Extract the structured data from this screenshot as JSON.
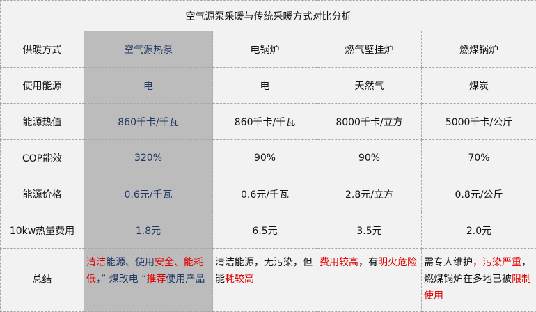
{
  "title": "空气源泵采暖与传统采暖方式对比分析",
  "colors": {
    "highlight_bg": "#bcbcbc",
    "highlight_text": "#1f3864",
    "emphasis": "#e00000",
    "background": "#f2f2f2"
  },
  "rows": [
    {
      "label": "供暖方式",
      "cells": [
        "空气源热泵",
        "电锅炉",
        "燃气壁挂炉",
        "燃煤锅炉"
      ]
    },
    {
      "label": "使用能源",
      "cells": [
        "电",
        "电",
        "天然气",
        "煤炭"
      ]
    },
    {
      "label": "能源热值",
      "cells": [
        "860千卡/千瓦",
        "860千卡/千瓦",
        "8000千卡/立方",
        "5000千卡/公斤"
      ]
    },
    {
      "label": "COP能效",
      "cells": [
        "320%",
        "90%",
        "90%",
        "70%"
      ]
    },
    {
      "label": "能源价格",
      "cells": [
        "0.6元/千瓦",
        "0.6元/千瓦",
        "2.8元/立方",
        "0.8元/公斤"
      ]
    },
    {
      "label": "10kw热量费用",
      "cells": [
        "1.8元",
        "6.5元",
        "3.5元",
        "2.0元"
      ]
    }
  ],
  "summary": {
    "label": "总结",
    "cells": [
      [
        {
          "t": "清洁",
          "r": true
        },
        {
          "t": "能源、使用",
          "r": false
        },
        {
          "t": "安全、能耗低",
          "r": true
        },
        {
          "t": "，” 煤改电 “",
          "r": false
        },
        {
          "t": "推荐",
          "r": true
        },
        {
          "t": "使用产品",
          "r": false
        }
      ],
      [
        {
          "t": "清洁能源，无污染，但能",
          "r": false
        },
        {
          "t": "耗较高",
          "r": true
        }
      ],
      [
        {
          "t": "费用较高",
          "r": true
        },
        {
          "t": "，有",
          "r": false
        },
        {
          "t": "明火危险",
          "r": true
        }
      ],
      [
        {
          "t": "需专人维护",
          "r": false
        },
        {
          "t": "，污染严重",
          "r": true
        },
        {
          "t": "，燃煤锅炉在多地已被",
          "r": false
        },
        {
          "t": "限制使用",
          "r": true
        }
      ]
    ]
  }
}
